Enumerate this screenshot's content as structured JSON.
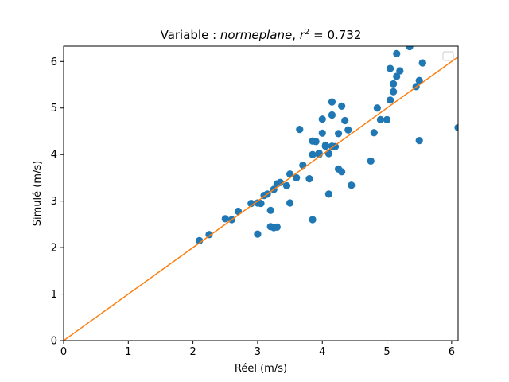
{
  "chart_data": {
    "type": "scatter",
    "title": {
      "prefix": "Variable : ",
      "variable": "normeplane",
      "separator": ", ",
      "stat_symbol": "r",
      "stat_exponent": "2",
      "stat_equals": " = ",
      "stat_value": "0.732"
    },
    "xlabel": "Réel (m/s)",
    "ylabel": "Simulé (m/s)",
    "xlim": [
      0,
      6.1
    ],
    "ylim": [
      0,
      6.33
    ],
    "xticks": [
      "0",
      "1",
      "2",
      "3",
      "4",
      "5",
      "6"
    ],
    "yticks": [
      "0",
      "1",
      "2",
      "3",
      "4",
      "5",
      "6"
    ],
    "grid": false,
    "legend": {
      "placement": "top-right",
      "entries": []
    },
    "colors": {
      "points": "#1f77b4",
      "line": "#ff7f0e"
    },
    "series": [
      {
        "kind": "points",
        "x": [
          2.1,
          2.25,
          2.5,
          2.6,
          2.7,
          2.9,
          3.0,
          3.05,
          3.1,
          3.15,
          3.2,
          3.25,
          3.3,
          3.35,
          3.45,
          3.5,
          3.5,
          3.6,
          3.7,
          3.8,
          3.85,
          3.9,
          3.95,
          4.0,
          4.0,
          4.05,
          4.1,
          4.15,
          4.2,
          4.25,
          4.3,
          4.35,
          4.4,
          4.45,
          3.2,
          3.25,
          3.3,
          3.85,
          4.1,
          3.0,
          3.65,
          3.95,
          4.05,
          4.15,
          4.15,
          4.3,
          4.8,
          4.85,
          4.9,
          5.0,
          5.05,
          5.05,
          5.1,
          5.1,
          5.15,
          5.15,
          5.2,
          5.35,
          5.45,
          5.5,
          5.55,
          5.55,
          4.75,
          5.5,
          6.1,
          3.85,
          4.05,
          4.25
        ],
        "y": [
          2.15,
          2.28,
          2.62,
          2.6,
          2.78,
          2.95,
          2.96,
          2.95,
          3.12,
          3.15,
          2.8,
          3.25,
          3.37,
          3.4,
          3.33,
          2.96,
          3.58,
          3.5,
          3.77,
          3.48,
          4.0,
          4.28,
          4.03,
          4.46,
          4.76,
          4.18,
          3.15,
          4.85,
          4.17,
          3.69,
          3.63,
          4.73,
          4.53,
          3.34,
          2.45,
          2.43,
          2.44,
          2.6,
          4.02,
          2.29,
          4.54,
          4.0,
          4.18,
          5.13,
          4.18,
          5.04,
          4.47,
          5.0,
          4.75,
          4.75,
          5.17,
          5.85,
          5.52,
          5.35,
          6.17,
          5.68,
          5.8,
          6.32,
          5.46,
          5.59,
          5.97,
          5.97,
          3.86,
          4.3,
          4.58,
          4.29,
          4.2,
          4.45
        ]
      },
      {
        "kind": "line",
        "x": [
          0,
          6.1
        ],
        "y": [
          0,
          6.1
        ]
      }
    ]
  }
}
